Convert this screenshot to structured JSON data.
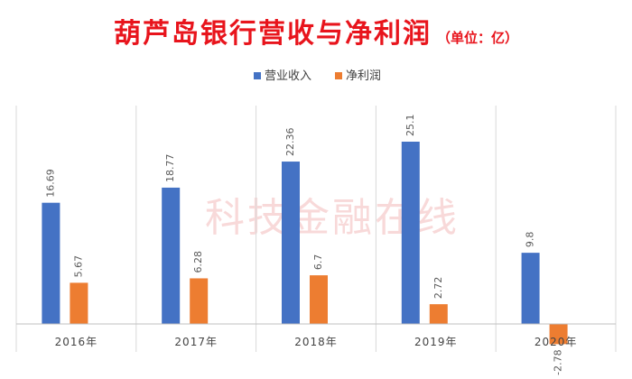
{
  "header": {
    "title": "葫芦岛银行营收与净利润",
    "unit": "（单位：亿）"
  },
  "watermark": "科技金融在线",
  "colors": {
    "revenue": "#4472c4",
    "profit": "#ed7d31",
    "title": "#e8141c"
  },
  "chart_data": {
    "type": "bar",
    "title": "葫芦岛银行营收与净利润",
    "subtitle": "（单位：亿）",
    "categories": [
      "2016年",
      "2017年",
      "2018年",
      "2019年",
      "2020年"
    ],
    "series": [
      {
        "name": "营业收入",
        "values": [
          16.69,
          18.77,
          22.36,
          25.1,
          9.8
        ]
      },
      {
        "name": "净利润",
        "values": [
          5.67,
          6.28,
          6.7,
          2.72,
          -2.78
        ]
      }
    ],
    "data_labels": [
      [
        "16.69",
        "18.77",
        "22.36",
        "25.1",
        "9.8"
      ],
      [
        "5.67",
        "6.28",
        "6.7",
        "2.72",
        "-2.78"
      ]
    ],
    "ylim": [
      -3,
      27
    ],
    "legend_position": "top-center",
    "grid": false,
    "category_separators": true
  }
}
